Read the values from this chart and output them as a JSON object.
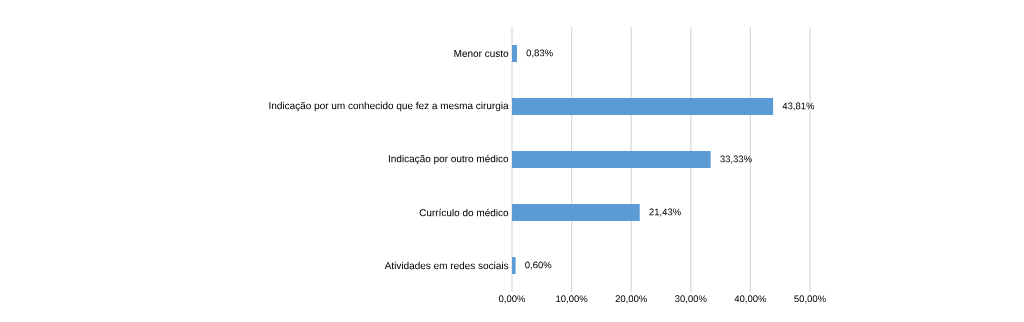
{
  "chart_data": {
    "type": "bar",
    "orientation": "horizontal",
    "categories": [
      "Menor custo",
      "Indicação por um conhecido que fez a mesma cirurgia",
      "Indicação por outro médico",
      "Currículo do médico",
      "Atividades em redes sociais"
    ],
    "values": [
      0.83,
      43.81,
      33.33,
      21.43,
      0.6
    ],
    "value_labels": [
      "0,83%",
      "43,81%",
      "33,33%",
      "21,43%",
      "0,60%"
    ],
    "color": "#5b9bd5",
    "xlim": [
      0,
      50
    ],
    "xticks": [
      {
        "value": 0,
        "label": "0,00%"
      },
      {
        "value": 10,
        "label": "10,00%"
      },
      {
        "value": 20,
        "label": "20,00%"
      },
      {
        "value": 30,
        "label": "30,00%"
      },
      {
        "value": 40,
        "label": "40,00%"
      },
      {
        "value": 50,
        "label": "50,00%"
      }
    ],
    "grid": "x"
  }
}
